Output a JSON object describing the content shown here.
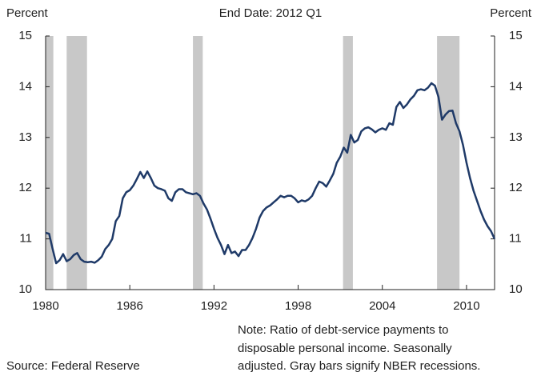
{
  "chart_data": {
    "type": "line",
    "title": "End Date: 2012 Q1",
    "y_label": "Percent",
    "y2_label": "Percent",
    "source": "Source: Federal Reserve",
    "note": [
      "Note: Ratio of debt-service payments to",
      "disposable personal income. Seasonally",
      "adjusted. Gray bars signify NBER recessions."
    ],
    "color": "#1f3a68",
    "recession_color": "#c8c8c8",
    "recessions": [
      [
        1980.0,
        1980.55
      ],
      [
        1981.5,
        1982.95
      ],
      [
        1990.5,
        1991.2
      ],
      [
        2001.2,
        2001.9
      ],
      [
        2007.9,
        2009.5
      ]
    ],
    "x": [
      1980,
      1980.25,
      1980.5,
      1980.75,
      1981,
      1981.25,
      1981.5,
      1981.75,
      1982,
      1982.25,
      1982.5,
      1982.75,
      1983,
      1983.25,
      1983.5,
      1983.75,
      1984,
      1984.25,
      1984.5,
      1984.75,
      1985,
      1985.25,
      1985.5,
      1985.75,
      1986,
      1986.25,
      1986.5,
      1986.75,
      1987,
      1987.25,
      1987.5,
      1987.75,
      1988,
      1988.25,
      1988.5,
      1988.75,
      1989,
      1989.25,
      1989.5,
      1989.75,
      1990,
      1990.25,
      1990.5,
      1990.75,
      1991,
      1991.25,
      1991.5,
      1991.75,
      1992,
      1992.25,
      1992.5,
      1992.75,
      1993,
      1993.25,
      1993.5,
      1993.75,
      1994,
      1994.25,
      1994.5,
      1994.75,
      1995,
      1995.25,
      1995.5,
      1995.75,
      1996,
      1996.25,
      1996.5,
      1996.75,
      1997,
      1997.25,
      1997.5,
      1997.75,
      1998,
      1998.25,
      1998.5,
      1998.75,
      1999,
      1999.25,
      1999.5,
      1999.75,
      2000,
      2000.25,
      2000.5,
      2000.75,
      2001,
      2001.25,
      2001.5,
      2001.75,
      2002,
      2002.25,
      2002.5,
      2002.75,
      2003,
      2003.25,
      2003.5,
      2003.75,
      2004,
      2004.25,
      2004.5,
      2004.75,
      2005,
      2005.25,
      2005.5,
      2005.75,
      2006,
      2006.25,
      2006.5,
      2006.75,
      2007,
      2007.25,
      2007.5,
      2007.75,
      2008,
      2008.25,
      2008.5,
      2008.75,
      2009,
      2009.25,
      2009.5,
      2009.75,
      2010,
      2010.25,
      2010.5,
      2010.75,
      2011,
      2011.25,
      2011.5,
      2011.75,
      2012
    ],
    "values": [
      11.12,
      11.1,
      10.8,
      10.52,
      10.58,
      10.7,
      10.56,
      10.6,
      10.68,
      10.72,
      10.6,
      10.55,
      10.54,
      10.55,
      10.53,
      10.58,
      10.65,
      10.8,
      10.88,
      11.0,
      11.35,
      11.45,
      11.8,
      11.92,
      11.96,
      12.05,
      12.18,
      12.32,
      12.2,
      12.33,
      12.2,
      12.05,
      12.0,
      11.98,
      11.95,
      11.8,
      11.75,
      11.92,
      11.98,
      11.98,
      11.92,
      11.9,
      11.88,
      11.9,
      11.85,
      11.7,
      11.58,
      11.4,
      11.2,
      11.02,
      10.88,
      10.7,
      10.88,
      10.72,
      10.75,
      10.66,
      10.78,
      10.78,
      10.88,
      11.02,
      11.2,
      11.42,
      11.55,
      11.62,
      11.66,
      11.72,
      11.78,
      11.85,
      11.82,
      11.85,
      11.85,
      11.8,
      11.72,
      11.76,
      11.74,
      11.78,
      11.85,
      12.0,
      12.13,
      12.1,
      12.03,
      12.15,
      12.28,
      12.5,
      12.62,
      12.8,
      12.7,
      13.05,
      12.9,
      12.95,
      13.12,
      13.18,
      13.2,
      13.16,
      13.1,
      13.15,
      13.18,
      13.15,
      13.28,
      13.25,
      13.6,
      13.7,
      13.58,
      13.65,
      13.75,
      13.82,
      13.93,
      13.95,
      13.93,
      13.98,
      14.07,
      14.02,
      13.8,
      13.35,
      13.45,
      13.52,
      13.53,
      13.28,
      13.12,
      12.85,
      12.5,
      12.2,
      11.95,
      11.75,
      11.55,
      11.38,
      11.25,
      11.15,
      11.0
    ],
    "xlim": [
      1980,
      2012
    ],
    "xticks": [
      1980,
      1986,
      1992,
      1998,
      2004,
      2010
    ],
    "ylim": [
      10,
      15
    ],
    "yticks": [
      10,
      11,
      12,
      13,
      14,
      15
    ],
    "y2lim": [
      10,
      15
    ],
    "y2ticks": [
      10,
      11,
      12,
      13,
      14,
      15
    ]
  }
}
